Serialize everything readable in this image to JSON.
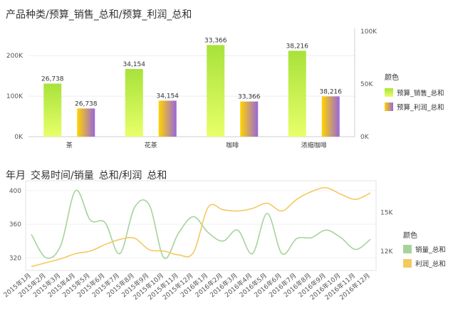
{
  "chart_data": [
    {
      "type": "bar",
      "title": "产品种类/预算_销售_总和/预算_利润_总和",
      "categories": [
        "茶",
        "花茶",
        "咖啡",
        "浓缩咖啡"
      ],
      "series": [
        {
          "name": "预算_销售_总和",
          "values": [
            131000,
            167000,
            226000,
            212000
          ],
          "axis": "left",
          "color_from": "#e6ff66",
          "color_to": "#8fd72e"
        },
        {
          "name": "预算_利润_总和",
          "values": [
            26738,
            34154,
            33366,
            38216
          ],
          "axis": "right",
          "color_from": "#ffd400",
          "color_to": "#9966dd"
        }
      ],
      "data_labels": [
        [
          "26,738",
          "34,154",
          "33,366",
          "38,216"
        ],
        [
          "26,738",
          "34,154",
          "33,366",
          "38,216"
        ]
      ],
      "left_axis": {
        "ticks": [
          "0K",
          "100K",
          "200K"
        ],
        "values": [
          0,
          100000,
          200000
        ],
        "ylim": [
          0,
          260000
        ]
      },
      "right_axis": {
        "ticks": [
          "0K",
          "50K",
          "100K"
        ],
        "values": [
          0,
          50000,
          100000
        ],
        "ylim": [
          0,
          100000
        ]
      },
      "legend": {
        "title": "颜色",
        "position": "right"
      }
    },
    {
      "type": "line",
      "title": "年月_交易时间/销量_总和/利润_总和",
      "x": [
        "2015年1月",
        "2015年2月",
        "2015年3月",
        "2015年4月",
        "2015年5月",
        "2015年6月",
        "2015年7月",
        "2015年8月",
        "2015年9月",
        "2015年10月",
        "2015年11月",
        "2015年12月",
        "2016年1月",
        "2016年2月",
        "2016年3月",
        "2016年4月",
        "2016年5月",
        "2016年6月",
        "2016年7月",
        "2016年8月",
        "2016年9月",
        "2016年10月",
        "2016年11月",
        "2016年12月"
      ],
      "series": [
        {
          "name": "销量_总和",
          "axis": "left",
          "color": "#a7d39a",
          "values": [
            348,
            320,
            335,
            400,
            365,
            362,
            325,
            380,
            383,
            320,
            350,
            369,
            350,
            340,
            353,
            325,
            373,
            325,
            343,
            344,
            353,
            344,
            330,
            342
          ]
        },
        {
          "name": "利润_总和",
          "axis": "right",
          "color": "#f3c960",
          "values": [
            10800,
            11100,
            11400,
            11800,
            12000,
            12500,
            12900,
            13000,
            12100,
            12000,
            11700,
            11900,
            15400,
            15200,
            15100,
            15300,
            15700,
            15100,
            16000,
            16600,
            16900,
            16400,
            16000,
            16500
          ]
        }
      ],
      "left_axis": {
        "ticks": [
          "320",
          "360",
          "400"
        ],
        "values": [
          320,
          360,
          400
        ],
        "ylim": [
          305,
          405
        ]
      },
      "right_axis": {
        "ticks": [
          "12K",
          "15K"
        ],
        "values": [
          12000,
          15000
        ],
        "ylim": [
          10500,
          17000
        ]
      },
      "legend": {
        "title": "颜色",
        "position": "right"
      }
    }
  ]
}
